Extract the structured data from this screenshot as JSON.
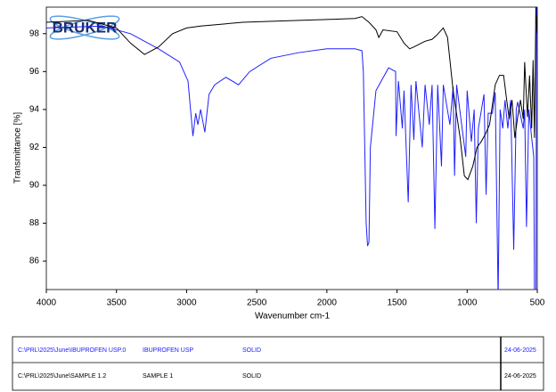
{
  "chart_data": {
    "type": "line",
    "logo": "BRUKER",
    "x_label": "Wavenumber cm-1",
    "y_label": "Transmittance [%]",
    "xlim": [
      4000,
      500
    ],
    "xticks": [
      4000,
      3500,
      3000,
      2500,
      2000,
      1500,
      1000,
      500
    ],
    "ylim": [
      84.5,
      99.4
    ],
    "yticks": [
      86,
      88,
      90,
      92,
      94,
      96,
      98
    ],
    "series": [
      {
        "color": "#2020ff",
        "x": [
          4000,
          3600,
          3400,
          3200,
          3050,
          2990,
          2955,
          2935,
          2920,
          2900,
          2870,
          2840,
          2800,
          2720,
          2630,
          2550,
          2400,
          2200,
          2000,
          1800,
          1750,
          1740,
          1720,
          1710,
          1700,
          1690,
          1650,
          1560,
          1510,
          1507,
          1490,
          1462,
          1450,
          1420,
          1400,
          1380,
          1365,
          1320,
          1300,
          1270,
          1250,
          1230,
          1210,
          1183,
          1170,
          1123,
          1100,
          1090,
          1075,
          1010,
          1000,
          970,
          950,
          935,
          920,
          880,
          865,
          850,
          820,
          800,
          779,
          765,
          746,
          730,
          710,
          690,
          668,
          650,
          640,
          600,
          590,
          577,
          560,
          540,
          525,
          520,
          510,
          505,
          500
        ],
        "values": [
          98.3,
          98.4,
          98.0,
          97.2,
          96.5,
          95.5,
          92.6,
          93.8,
          93.2,
          94.0,
          92.8,
          94.8,
          95.3,
          95.7,
          95.3,
          96.0,
          96.7,
          97.0,
          97.2,
          97.2,
          97.1,
          96.0,
          88.0,
          86.8,
          87.0,
          92.0,
          95.0,
          96.2,
          96.0,
          92.6,
          95.5,
          93.0,
          95.0,
          89.1,
          95.3,
          92.4,
          95.5,
          92.0,
          95.3,
          93.2,
          95.3,
          87.7,
          95.3,
          91.0,
          95.3,
          93.2,
          95.2,
          90.5,
          95.3,
          91.5,
          95.0,
          92.3,
          94.0,
          88.0,
          93.0,
          94.8,
          89.5,
          93.8,
          93.8,
          94.9,
          84.0,
          94.0,
          93.0,
          94.5,
          93.0,
          94.5,
          86.6,
          94.0,
          94.4,
          93.0,
          94.0,
          87.8,
          94.0,
          92.5,
          91.5,
          84.0,
          84.0,
          99.4,
          99.0
        ]
      },
      {
        "color": "#000000",
        "x": [
          4000,
          3700,
          3500,
          3400,
          3300,
          3200,
          3100,
          3000,
          2900,
          2600,
          2200,
          1800,
          1750,
          1700,
          1650,
          1630,
          1600,
          1500,
          1450,
          1410,
          1380,
          1300,
          1250,
          1220,
          1170,
          1140,
          1100,
          1050,
          1020,
          995,
          960,
          930,
          900,
          870,
          840,
          800,
          770,
          740,
          720,
          700,
          680,
          660,
          640,
          620,
          600,
          590,
          570,
          555,
          540,
          530,
          520,
          510,
          500
        ],
        "values": [
          98.6,
          98.7,
          98.3,
          97.5,
          96.9,
          97.3,
          98.0,
          98.3,
          98.4,
          98.6,
          98.7,
          98.8,
          98.9,
          98.6,
          98.2,
          97.8,
          98.2,
          98.1,
          97.5,
          97.2,
          97.3,
          97.6,
          97.7,
          97.9,
          98.3,
          97.8,
          95.0,
          92.5,
          90.5,
          90.3,
          91.0,
          92.0,
          92.3,
          92.7,
          93.2,
          95.3,
          95.8,
          95.8,
          94.6,
          93.5,
          94.5,
          92.5,
          93.6,
          94.5,
          93.5,
          96.5,
          93.6,
          95.8,
          93.0,
          96.6,
          92.5,
          99.4,
          98.0
        ]
      }
    ]
  },
  "table": {
    "rows": [
      [
        "C:\\PRL\\2025\\June\\IBUPROFEN USP.0",
        "IBUPROFEN USP",
        "SOLID",
        "24-06-2025"
      ],
      [
        "C:\\PRL\\2025\\June\\SAMPLE 1.2",
        "SAMPLE 1",
        "SOLID",
        "24-06-2025"
      ]
    ]
  }
}
